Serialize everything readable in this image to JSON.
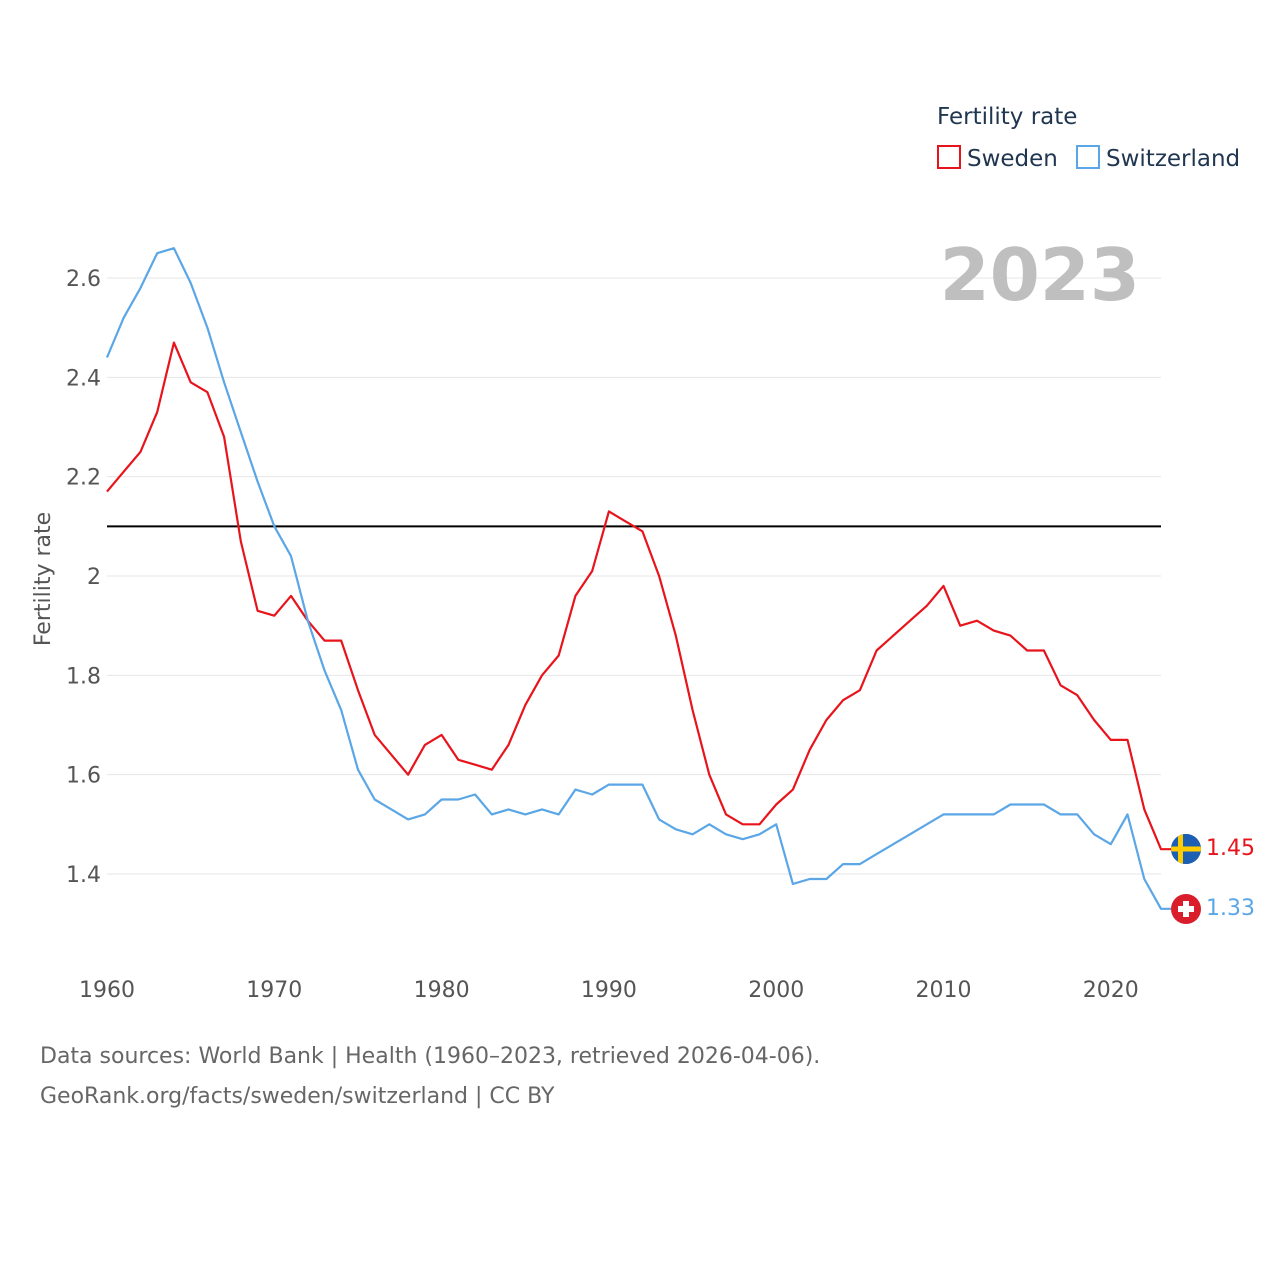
{
  "chart_data": {
    "type": "line",
    "ylabel": "Fertility rate",
    "xlabel": "",
    "xlim": [
      1960,
      2023
    ],
    "ylim": [
      1.3,
      2.7
    ],
    "xticks": [
      1960,
      1970,
      1980,
      1990,
      2000,
      2010,
      2020
    ],
    "yticks": [
      1.4,
      1.6,
      1.8,
      2,
      2.2,
      2.4,
      2.6
    ],
    "ytick_labels": [
      "1.4",
      "1.6",
      "1.8",
      "2",
      "2.2",
      "2.4",
      "2.6"
    ],
    "reference_line": 2.1,
    "year_label": "2023",
    "legend": {
      "title": "Fertility rate",
      "position": "top-right"
    },
    "x": [
      1960,
      1961,
      1962,
      1963,
      1964,
      1965,
      1966,
      1967,
      1968,
      1969,
      1970,
      1971,
      1972,
      1973,
      1974,
      1975,
      1976,
      1977,
      1978,
      1979,
      1980,
      1981,
      1982,
      1983,
      1984,
      1985,
      1986,
      1987,
      1988,
      1989,
      1990,
      1991,
      1992,
      1993,
      1994,
      1995,
      1996,
      1997,
      1998,
      1999,
      2000,
      2001,
      2002,
      2003,
      2004,
      2005,
      2006,
      2007,
      2008,
      2009,
      2010,
      2011,
      2012,
      2013,
      2014,
      2015,
      2016,
      2017,
      2018,
      2019,
      2020,
      2021,
      2022,
      2023
    ],
    "series": [
      {
        "name": "Sweden",
        "color": "#e8141c",
        "end_label": "1.45",
        "values": [
          2.17,
          2.21,
          2.25,
          2.33,
          2.47,
          2.39,
          2.37,
          2.28,
          2.07,
          1.93,
          1.92,
          1.96,
          1.91,
          1.87,
          1.87,
          1.77,
          1.68,
          1.64,
          1.6,
          1.66,
          1.68,
          1.63,
          1.62,
          1.61,
          1.66,
          1.74,
          1.8,
          1.84,
          1.96,
          2.01,
          2.13,
          2.11,
          2.09,
          2.0,
          1.88,
          1.73,
          1.6,
          1.52,
          1.5,
          1.5,
          1.54,
          1.57,
          1.65,
          1.71,
          1.75,
          1.77,
          1.85,
          1.88,
          1.91,
          1.94,
          1.98,
          1.9,
          1.91,
          1.89,
          1.88,
          1.85,
          1.85,
          1.78,
          1.76,
          1.71,
          1.67,
          1.67,
          1.53,
          1.45
        ]
      },
      {
        "name": "Switzerland",
        "color": "#5aa6e6",
        "end_label": "1.33",
        "values": [
          2.44,
          2.52,
          2.58,
          2.65,
          2.66,
          2.59,
          2.5,
          2.39,
          2.29,
          2.19,
          2.1,
          2.04,
          1.91,
          1.81,
          1.73,
          1.61,
          1.55,
          1.53,
          1.51,
          1.52,
          1.55,
          1.55,
          1.56,
          1.52,
          1.53,
          1.52,
          1.53,
          1.52,
          1.57,
          1.56,
          1.58,
          1.58,
          1.58,
          1.51,
          1.49,
          1.48,
          1.5,
          1.48,
          1.47,
          1.48,
          1.5,
          1.38,
          1.39,
          1.39,
          1.42,
          1.42,
          1.44,
          1.46,
          1.48,
          1.5,
          1.52,
          1.52,
          1.52,
          1.52,
          1.54,
          1.54,
          1.54,
          1.52,
          1.52,
          1.48,
          1.46,
          1.52,
          1.39,
          1.33
        ]
      }
    ],
    "footer": {
      "sources": "Data sources: World Bank | Health (1960–2023, retrieved 2026-04-06).",
      "credit": "GeoRank.org/facts/sweden/switzerland | CC BY"
    }
  }
}
